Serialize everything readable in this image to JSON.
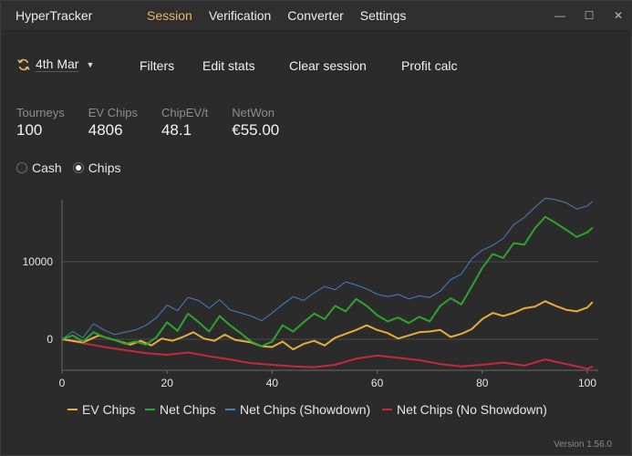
{
  "app": {
    "title": "HyperTracker",
    "version": "Version 1.56.0"
  },
  "menu": [
    "Session",
    "Verification",
    "Converter",
    "Settings"
  ],
  "active_menu": "Session",
  "window_controls": {
    "minimize": "—",
    "maximize": "☐",
    "close": "✕"
  },
  "toolbar": {
    "date": "4th Mar",
    "refresh_icon": "refresh-icon",
    "filters": "Filters",
    "edit_stats": "Edit stats",
    "clear_session": "Clear session",
    "profit_calc": "Profit calc"
  },
  "stats": [
    {
      "label": "Tourneys",
      "value": "100"
    },
    {
      "label": "EV Chips",
      "value": "4806"
    },
    {
      "label": "ChipEV/t",
      "value": "48.1"
    },
    {
      "label": "NetWon",
      "value": "€55.00"
    }
  ],
  "mode": {
    "options": [
      "Cash",
      "Chips"
    ],
    "selected": "Chips"
  },
  "colors": {
    "accent": "#e8b66a",
    "ev": "#e5ad3c",
    "net": "#2fa32f",
    "showdown": "#4a7ebe",
    "no_showdown": "#c8283c"
  },
  "chart_data": {
    "type": "line",
    "xlim": [
      0,
      100
    ],
    "ylim": [
      -4000,
      18000
    ],
    "x_ticks": [
      0,
      20,
      40,
      60,
      80,
      100
    ],
    "y_ticks": [
      0,
      10000
    ],
    "grid": true,
    "legend": "bottom",
    "series": [
      {
        "name": "EV Chips",
        "color": "#e5ad3c",
        "points": [
          [
            0,
            0
          ],
          [
            4,
            -400
          ],
          [
            7,
            500
          ],
          [
            10,
            -100
          ],
          [
            13,
            -700
          ],
          [
            15,
            -200
          ],
          [
            17,
            -800
          ],
          [
            19,
            100
          ],
          [
            21,
            -200
          ],
          [
            23,
            300
          ],
          [
            25,
            900
          ],
          [
            27,
            100
          ],
          [
            29,
            -200
          ],
          [
            31,
            600
          ],
          [
            33,
            -100
          ],
          [
            36,
            -400
          ],
          [
            38,
            -900
          ],
          [
            40,
            -1000
          ],
          [
            42,
            -300
          ],
          [
            44,
            -1300
          ],
          [
            46,
            -600
          ],
          [
            48,
            -200
          ],
          [
            50,
            -800
          ],
          [
            52,
            200
          ],
          [
            54,
            700
          ],
          [
            56,
            1200
          ],
          [
            58,
            1800
          ],
          [
            60,
            1200
          ],
          [
            62,
            800
          ],
          [
            64,
            100
          ],
          [
            66,
            500
          ],
          [
            68,
            900
          ],
          [
            70,
            1000
          ],
          [
            72,
            1200
          ],
          [
            74,
            300
          ],
          [
            76,
            700
          ],
          [
            78,
            1300
          ],
          [
            80,
            2600
          ],
          [
            82,
            3400
          ],
          [
            84,
            3000
          ],
          [
            86,
            3400
          ],
          [
            88,
            4000
          ],
          [
            90,
            4200
          ],
          [
            92,
            4900
          ],
          [
            94,
            4300
          ],
          [
            96,
            3800
          ],
          [
            98,
            3600
          ],
          [
            100,
            4100
          ],
          [
            101,
            4800
          ]
        ]
      },
      {
        "name": "Net Chips",
        "color": "#2fa32f",
        "points": [
          [
            0,
            0
          ],
          [
            2,
            500
          ],
          [
            4,
            -300
          ],
          [
            6,
            900
          ],
          [
            8,
            300
          ],
          [
            10,
            -100
          ],
          [
            12,
            -600
          ],
          [
            14,
            -300
          ],
          [
            16,
            -700
          ],
          [
            18,
            300
          ],
          [
            20,
            2200
          ],
          [
            22,
            1100
          ],
          [
            24,
            3300
          ],
          [
            26,
            2200
          ],
          [
            28,
            1000
          ],
          [
            30,
            3000
          ],
          [
            32,
            1800
          ],
          [
            34,
            800
          ],
          [
            36,
            -300
          ],
          [
            38,
            -900
          ],
          [
            40,
            -300
          ],
          [
            42,
            1800
          ],
          [
            44,
            1000
          ],
          [
            46,
            2200
          ],
          [
            48,
            3300
          ],
          [
            50,
            2600
          ],
          [
            52,
            4300
          ],
          [
            54,
            3600
          ],
          [
            56,
            5200
          ],
          [
            58,
            4300
          ],
          [
            60,
            3100
          ],
          [
            62,
            2300
          ],
          [
            64,
            2800
          ],
          [
            66,
            2100
          ],
          [
            68,
            2900
          ],
          [
            70,
            2300
          ],
          [
            72,
            4300
          ],
          [
            74,
            5300
          ],
          [
            76,
            4500
          ],
          [
            78,
            6800
          ],
          [
            80,
            9200
          ],
          [
            82,
            11000
          ],
          [
            84,
            10500
          ],
          [
            86,
            12400
          ],
          [
            88,
            12200
          ],
          [
            90,
            14300
          ],
          [
            92,
            15800
          ],
          [
            94,
            15000
          ],
          [
            96,
            14100
          ],
          [
            98,
            13200
          ],
          [
            100,
            13800
          ],
          [
            101,
            14400
          ]
        ]
      },
      {
        "name": "Net Chips (Showdown)",
        "color": "#4a7ebe",
        "points": [
          [
            0,
            0
          ],
          [
            2,
            1000
          ],
          [
            4,
            200
          ],
          [
            6,
            2000
          ],
          [
            8,
            1200
          ],
          [
            10,
            600
          ],
          [
            12,
            900
          ],
          [
            14,
            1200
          ],
          [
            16,
            1800
          ],
          [
            18,
            2800
          ],
          [
            20,
            4400
          ],
          [
            22,
            3700
          ],
          [
            24,
            5400
          ],
          [
            26,
            5000
          ],
          [
            28,
            4000
          ],
          [
            30,
            5100
          ],
          [
            32,
            3800
          ],
          [
            34,
            3400
          ],
          [
            36,
            3000
          ],
          [
            38,
            2400
          ],
          [
            40,
            3400
          ],
          [
            42,
            4500
          ],
          [
            44,
            5500
          ],
          [
            46,
            5000
          ],
          [
            48,
            6000
          ],
          [
            50,
            6800
          ],
          [
            52,
            6400
          ],
          [
            54,
            7400
          ],
          [
            56,
            7000
          ],
          [
            58,
            6500
          ],
          [
            60,
            5800
          ],
          [
            62,
            5500
          ],
          [
            64,
            5800
          ],
          [
            66,
            5200
          ],
          [
            68,
            5600
          ],
          [
            70,
            5400
          ],
          [
            72,
            6200
          ],
          [
            74,
            7700
          ],
          [
            76,
            8400
          ],
          [
            78,
            10400
          ],
          [
            80,
            11500
          ],
          [
            82,
            12100
          ],
          [
            84,
            13000
          ],
          [
            86,
            14800
          ],
          [
            88,
            15700
          ],
          [
            90,
            17000
          ],
          [
            92,
            18200
          ],
          [
            94,
            18000
          ],
          [
            96,
            17600
          ],
          [
            98,
            16800
          ],
          [
            100,
            17200
          ],
          [
            101,
            17800
          ]
        ]
      },
      {
        "name": "Net Chips (No Showdown)",
        "color": "#c8283c",
        "points": [
          [
            0,
            0
          ],
          [
            4,
            -500
          ],
          [
            8,
            -1000
          ],
          [
            12,
            -1400
          ],
          [
            16,
            -1800
          ],
          [
            20,
            -2000
          ],
          [
            24,
            -1700
          ],
          [
            28,
            -2200
          ],
          [
            32,
            -2600
          ],
          [
            36,
            -3100
          ],
          [
            40,
            -3300
          ],
          [
            44,
            -3500
          ],
          [
            48,
            -3600
          ],
          [
            52,
            -3300
          ],
          [
            56,
            -2500
          ],
          [
            60,
            -2100
          ],
          [
            64,
            -2400
          ],
          [
            68,
            -2700
          ],
          [
            72,
            -3200
          ],
          [
            76,
            -3500
          ],
          [
            80,
            -3300
          ],
          [
            84,
            -3000
          ],
          [
            88,
            -3400
          ],
          [
            92,
            -2600
          ],
          [
            96,
            -3200
          ],
          [
            100,
            -3800
          ],
          [
            101,
            -3500
          ]
        ]
      }
    ]
  }
}
